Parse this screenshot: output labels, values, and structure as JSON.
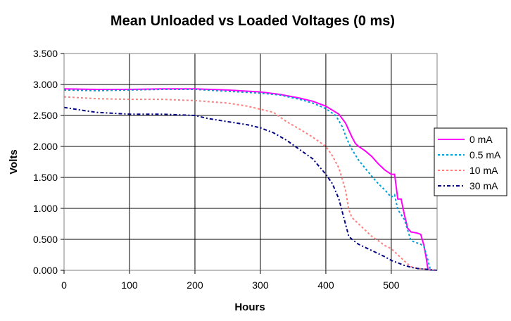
{
  "chart_data": {
    "type": "line",
    "title": "Mean Unloaded vs Loaded Voltages (0 ms)",
    "xlabel": "Hours",
    "ylabel": "Volts",
    "xlim": [
      0,
      570
    ],
    "ylim": [
      0,
      3.5
    ],
    "x_ticks": [
      0,
      100,
      200,
      300,
      400,
      500
    ],
    "x_tick_labels": [
      "0",
      "100",
      "200",
      "300",
      "400",
      "500"
    ],
    "y_ticks": [
      0,
      0.5,
      1.0,
      1.5,
      2.0,
      2.5,
      3.0,
      3.5
    ],
    "y_tick_labels": [
      "0.000",
      "0.500",
      "1.000",
      "1.500",
      "2.000",
      "2.500",
      "3.000",
      "3.500"
    ],
    "grid": true,
    "legend_position": "right",
    "series": [
      {
        "name": "0 mA",
        "color": "#ff00ff",
        "style": "solid",
        "x": [
          0,
          50,
          100,
          150,
          200,
          250,
          300,
          330,
          360,
          380,
          400,
          420,
          430,
          440,
          445,
          450,
          460,
          470,
          480,
          490,
          500,
          505,
          510,
          515,
          520,
          525,
          530,
          540,
          545,
          550,
          553,
          556,
          560,
          570
        ],
        "y": [
          2.93,
          2.92,
          2.92,
          2.93,
          2.93,
          2.91,
          2.88,
          2.84,
          2.78,
          2.73,
          2.65,
          2.52,
          2.38,
          2.15,
          2.05,
          2.0,
          1.93,
          1.84,
          1.72,
          1.62,
          1.55,
          1.55,
          1.15,
          1.15,
          0.9,
          0.68,
          0.62,
          0.6,
          0.58,
          0.4,
          0.22,
          0.02,
          0.0,
          0.0
        ]
      },
      {
        "name": "0.5 mA",
        "color": "#00a0d8",
        "style": "dotted",
        "x": [
          0,
          50,
          100,
          150,
          200,
          250,
          300,
          330,
          360,
          380,
          400,
          415,
          425,
          432,
          440,
          450,
          460,
          470,
          480,
          490,
          500,
          505,
          510,
          515,
          520,
          525,
          530,
          540,
          545,
          550,
          555,
          560,
          570
        ],
        "y": [
          2.91,
          2.9,
          2.91,
          2.92,
          2.92,
          2.89,
          2.86,
          2.83,
          2.76,
          2.7,
          2.61,
          2.5,
          2.32,
          2.12,
          1.95,
          1.78,
          1.65,
          1.52,
          1.4,
          1.3,
          1.18,
          1.22,
          0.98,
          0.9,
          0.82,
          0.65,
          0.48,
          0.44,
          0.42,
          0.38,
          0.2,
          0.0,
          0.0
        ]
      },
      {
        "name": "10 mA",
        "color": "#ff7f7f",
        "style": "dotted",
        "x": [
          0,
          50,
          100,
          150,
          200,
          250,
          280,
          300,
          320,
          340,
          360,
          380,
          400,
          410,
          420,
          430,
          435,
          440,
          450,
          460,
          470,
          480,
          490,
          500,
          510,
          520,
          530,
          540,
          550,
          560,
          570
        ],
        "y": [
          2.8,
          2.77,
          2.76,
          2.76,
          2.74,
          2.7,
          2.65,
          2.6,
          2.55,
          2.4,
          2.28,
          2.15,
          2.0,
          1.85,
          1.65,
          1.3,
          0.98,
          0.85,
          0.75,
          0.65,
          0.55,
          0.48,
          0.4,
          0.35,
          0.25,
          0.15,
          0.06,
          0.03,
          0.02,
          0.01,
          0.0
        ]
      },
      {
        "name": "30 mA",
        "color": "#000080",
        "style": "dashdot",
        "x": [
          0,
          30,
          50,
          100,
          150,
          200,
          220,
          250,
          280,
          300,
          320,
          340,
          360,
          380,
          400,
          410,
          420,
          430,
          435,
          440,
          450,
          470,
          490,
          500,
          510,
          520,
          530,
          540,
          550,
          560,
          570
        ],
        "y": [
          2.63,
          2.58,
          2.55,
          2.52,
          2.52,
          2.5,
          2.45,
          2.4,
          2.35,
          2.3,
          2.22,
          2.1,
          1.95,
          1.8,
          1.55,
          1.4,
          1.15,
          0.75,
          0.55,
          0.5,
          0.42,
          0.32,
          0.22,
          0.16,
          0.12,
          0.08,
          0.05,
          0.03,
          0.02,
          0.01,
          0.0
        ]
      }
    ]
  }
}
